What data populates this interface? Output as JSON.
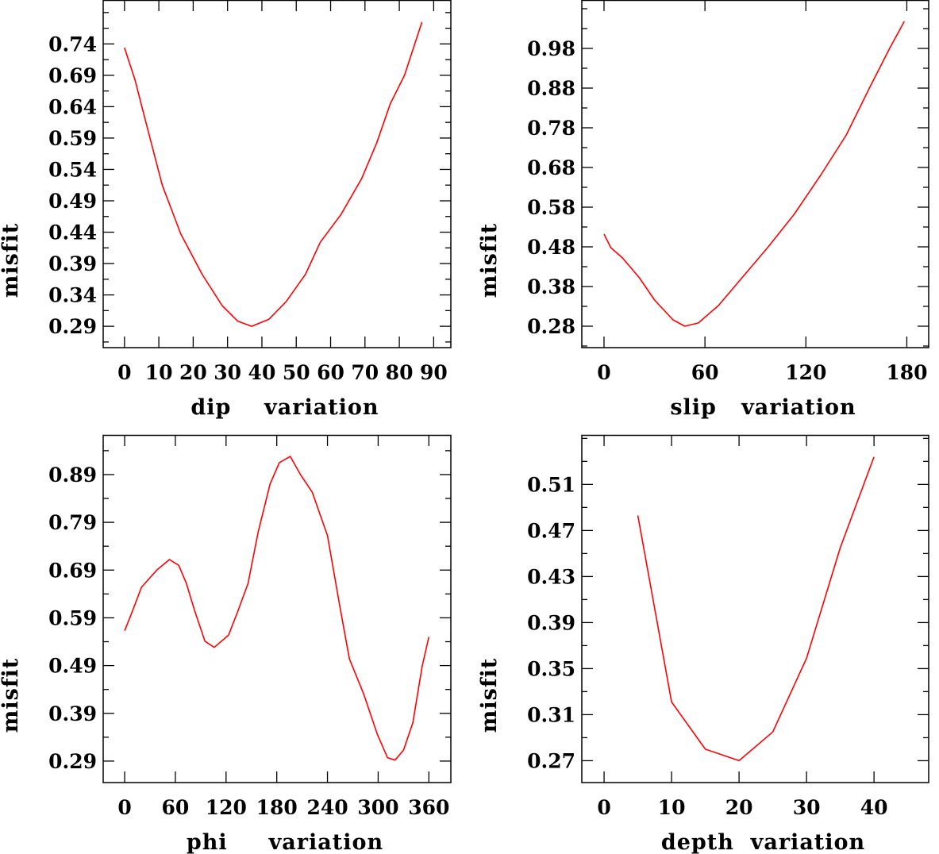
{
  "chart_data": [
    {
      "type": "line",
      "title": "",
      "xlabel": "dip    variation",
      "ylabel": "misfit",
      "xlim": [
        -6.2,
        95
      ],
      "ylim": [
        0.256,
        0.81
      ],
      "xticks": [
        "0",
        "10",
        "20",
        "30",
        "40",
        "50",
        "60",
        "70",
        "80",
        "90"
      ],
      "xtick_values": [
        0,
        10,
        20,
        30,
        40,
        50,
        60,
        70,
        80,
        90
      ],
      "yticks": [
        "0.29",
        "0.34",
        "0.39",
        "0.44",
        "0.49",
        "0.54",
        "0.59",
        "0.64",
        "0.69",
        "0.74"
      ],
      "ytick_values": [
        0.29,
        0.34,
        0.39,
        0.44,
        0.49,
        0.54,
        0.59,
        0.64,
        0.69,
        0.74
      ],
      "color": "#ff0000",
      "x": [
        0,
        3,
        6,
        11,
        16.4,
        22.6,
        28.4,
        33,
        37,
        42,
        47,
        52.7,
        57,
        63,
        69,
        73.4,
        77.4,
        81.5,
        86.6
      ],
      "y": [
        0.734,
        0.684,
        0.62,
        0.515,
        0.437,
        0.373,
        0.323,
        0.298,
        0.29,
        0.301,
        0.329,
        0.373,
        0.424,
        0.468,
        0.525,
        0.582,
        0.645,
        0.69,
        0.775
      ]
    },
    {
      "type": "line",
      "title": "",
      "xlabel": "slip   variation",
      "ylabel": "misfit",
      "xlim": [
        -13.2,
        193
      ],
      "ylim": [
        0.226,
        1.102
      ],
      "xticks": [
        "0",
        "60",
        "120",
        "180"
      ],
      "xtick_values": [
        0,
        60,
        120,
        180
      ],
      "yticks": [
        "0.28",
        "0.38",
        "0.48",
        "0.58",
        "0.68",
        "0.78",
        "0.88",
        "0.98"
      ],
      "ytick_values": [
        0.28,
        0.38,
        0.48,
        0.58,
        0.68,
        0.78,
        0.88,
        0.98
      ],
      "color": "#ff0000",
      "x": [
        0,
        4,
        11,
        21,
        30,
        41,
        48,
        56,
        68,
        82,
        98,
        113,
        129,
        144,
        158,
        170,
        178.5
      ],
      "y": [
        0.512,
        0.478,
        0.452,
        0.402,
        0.346,
        0.296,
        0.28,
        0.288,
        0.332,
        0.402,
        0.482,
        0.562,
        0.662,
        0.762,
        0.882,
        0.982,
        1.048
      ]
    },
    {
      "type": "line",
      "title": "",
      "xlabel": "phi     variation",
      "ylabel": "misfit",
      "xlim": [
        -25.4,
        386
      ],
      "ylim": [
        0.245,
        0.973
      ],
      "xticks": [
        "0",
        "60",
        "120",
        "180",
        "240",
        "300",
        "360"
      ],
      "xtick_values": [
        0,
        60,
        120,
        180,
        240,
        300,
        360
      ],
      "yticks": [
        "0.29",
        "0.39",
        "0.49",
        "0.59",
        "0.69",
        "0.79",
        "0.89"
      ],
      "ytick_values": [
        0.29,
        0.39,
        0.49,
        0.59,
        0.69,
        0.79,
        0.89
      ],
      "color": "#ff0000",
      "x": [
        0,
        7.5,
        20,
        38,
        53,
        64,
        73,
        83,
        95,
        106,
        123,
        134,
        146,
        158,
        172,
        183,
        196,
        208,
        222,
        240,
        254,
        266,
        283,
        299,
        311,
        320,
        330,
        341,
        352,
        360
      ],
      "y": [
        0.563,
        0.596,
        0.654,
        0.69,
        0.712,
        0.7,
        0.662,
        0.604,
        0.541,
        0.528,
        0.554,
        0.604,
        0.662,
        0.77,
        0.87,
        0.915,
        0.928,
        0.89,
        0.853,
        0.762,
        0.62,
        0.504,
        0.43,
        0.346,
        0.297,
        0.292,
        0.313,
        0.37,
        0.488,
        0.55
      ]
    },
    {
      "type": "line",
      "title": "",
      "xlabel": "depth  variation",
      "ylabel": "misfit",
      "xlim": [
        -3.3,
        48.1
      ],
      "ylim": [
        0.251,
        0.553
      ],
      "xticks": [
        "0",
        "10",
        "20",
        "30",
        "40"
      ],
      "xtick_values": [
        0,
        10,
        20,
        30,
        40
      ],
      "yticks": [
        "0.27",
        "0.31",
        "0.35",
        "0.39",
        "0.43",
        "0.47",
        "0.51"
      ],
      "ytick_values": [
        0.27,
        0.31,
        0.35,
        0.39,
        0.43,
        0.47,
        0.51
      ],
      "color": "#ff0000",
      "x": [
        5,
        10,
        15,
        20,
        25,
        30,
        35,
        40
      ],
      "y": [
        0.483,
        0.321,
        0.28,
        0.27,
        0.295,
        0.359,
        0.455,
        0.534
      ]
    }
  ]
}
